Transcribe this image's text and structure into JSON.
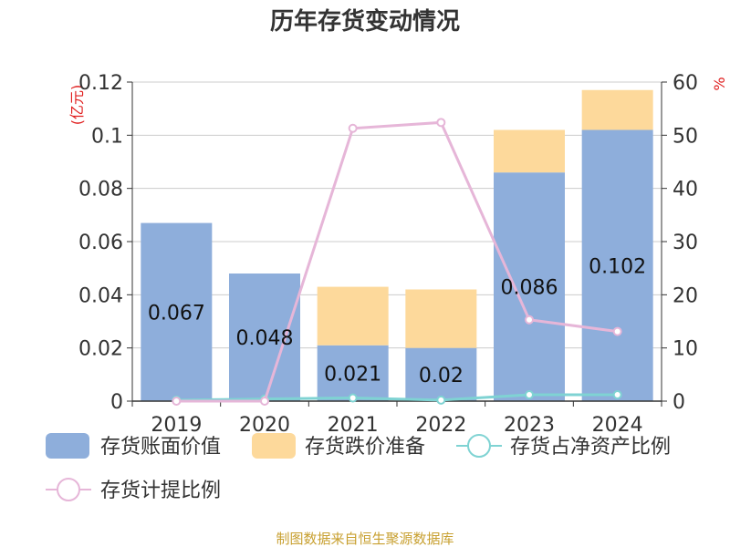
{
  "title": "历年存货变动情况",
  "source": "制图数据来自恒生聚源数据库",
  "y_left_unit": "(亿元)",
  "y_right_unit": "%",
  "colors": {
    "book_value": "#8eaedb",
    "impairment": "#fdd99b",
    "net_asset_ratio": "#7fd3d3",
    "provision_ratio": "#e6b6d8"
  },
  "legend": [
    "存货账面价值",
    "存货跌价准备",
    "存货占净资产比例",
    "存货计提比例"
  ],
  "chart_data": {
    "type": "bar",
    "stacked": true,
    "categories": [
      "2019",
      "2020",
      "2021",
      "2022",
      "2023",
      "2024"
    ],
    "series": [
      {
        "name": "存货账面价值",
        "type": "bar",
        "axis": "left",
        "values": [
          0.067,
          0.048,
          0.021,
          0.02,
          0.086,
          0.102
        ]
      },
      {
        "name": "存货跌价准备",
        "type": "bar",
        "axis": "left",
        "values": [
          0,
          0,
          0.022,
          0.022,
          0.016,
          0.015
        ]
      },
      {
        "name": "存货占净资产比例",
        "type": "line",
        "axis": "right",
        "values": [
          0.2,
          0.4,
          0.6,
          0.2,
          1.2,
          1.2
        ]
      },
      {
        "name": "存货计提比例",
        "type": "line",
        "axis": "right",
        "values": [
          0,
          0,
          51.3,
          52.4,
          15.3,
          13.1
        ]
      }
    ],
    "data_labels": [
      "0.067",
      "0.048",
      "0.021",
      "0.02",
      "0.086",
      "0.102"
    ],
    "y_left_ticks": [
      "0",
      "0.02",
      "0.04",
      "0.06",
      "0.08",
      "0.1",
      "0.12"
    ],
    "y_right_ticks": [
      "0",
      "10",
      "20",
      "30",
      "40",
      "50",
      "60"
    ],
    "ylim_left": [
      0,
      0.12
    ],
    "ylim_right": [
      0,
      60
    ],
    "grid": true,
    "legend_position": "bottom"
  }
}
